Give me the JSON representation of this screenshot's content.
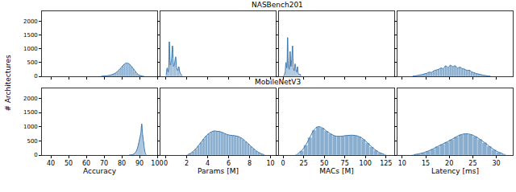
{
  "chart_data": {
    "type": "histogram",
    "ylabel": "# Architectures",
    "ylim": [
      0,
      2350
    ],
    "yticks": [
      0,
      500,
      1000,
      1500,
      2000
    ],
    "color": "#3a78b0",
    "rows": [
      {
        "title": "NASBench201",
        "panels": [
          {
            "tick_labels": "y",
            "xlim": [
              35,
              100
            ],
            "xticks": [
              40,
              50,
              60,
              70,
              80,
              90,
              100
            ],
            "bins": [
              68,
              69,
              70,
              71,
              72,
              73,
              74,
              75,
              76,
              77,
              78,
              79,
              80,
              81,
              82,
              83,
              84,
              85,
              86,
              87,
              88,
              89,
              90,
              91,
              92,
              93
            ],
            "counts": [
              5,
              8,
              12,
              20,
              30,
              45,
              60,
              85,
              120,
              170,
              230,
              300,
              380,
              440,
              480,
              470,
              430,
              360,
              280,
              190,
              110,
              55,
              25,
              10,
              3
            ]
          },
          {
            "tick_labels": false,
            "xlim": [
              -0.5,
              10.5
            ],
            "xticks": [
              0,
              2,
              4,
              6,
              8,
              10
            ],
            "bins": [
              0,
              0.1,
              0.2,
              0.3,
              0.4,
              0.5,
              0.6,
              0.7,
              0.8,
              0.9,
              1.0,
              1.1,
              1.2,
              1.3,
              1.4,
              1.5,
              1.6
            ],
            "counts": [
              50,
              300,
              150,
              1250,
              400,
              600,
              1100,
              350,
              500,
              700,
              300,
              200,
              350,
              150,
              80,
              40
            ]
          },
          {
            "tick_labels": false,
            "xlim": [
              -5,
              135
            ],
            "xticks": [
              0,
              25,
              50,
              75,
              100,
              125
            ],
            "bins": [
              0,
              1,
              2,
              3,
              4,
              5,
              6,
              7,
              8,
              9,
              10,
              11,
              12,
              13,
              14,
              15,
              16,
              17,
              18,
              19,
              20,
              21,
              22
            ],
            "counts": [
              20,
              50,
              150,
              500,
              300,
              1400,
              400,
              250,
              900,
              350,
              600,
              1100,
              300,
              200,
              450,
              250,
              150,
              350,
              100,
              60,
              80,
              20
            ]
          },
          {
            "tick_labels": false,
            "xlim": [
              9,
              33.5
            ],
            "xticks": [
              10,
              15,
              20,
              25,
              30
            ],
            "bins": [
              12,
              12.5,
              13,
              13.5,
              14,
              14.5,
              15,
              15.5,
              16,
              16.5,
              17,
              17.5,
              18,
              18.5,
              19,
              19.5,
              20,
              20.5,
              21,
              21.5,
              22,
              22.5,
              23,
              23.5,
              24,
              24.5,
              25,
              25.5,
              26,
              26.5,
              27,
              27.5,
              28,
              28.5,
              29
            ],
            "counts": [
              10,
              15,
              30,
              50,
              60,
              90,
              110,
              150,
              140,
              200,
              230,
              250,
              300,
              280,
              380,
              320,
              400,
              350,
              380,
              300,
              330,
              280,
              260,
              210,
              220,
              160,
              130,
              100,
              80,
              60,
              40,
              25,
              15,
              8
            ]
          }
        ]
      },
      {
        "title": "MobileNetV3",
        "panels": [
          {
            "tick_labels": true,
            "xlabel": "Accuracy",
            "xlim": [
              35,
              100
            ],
            "xticks": [
              40,
              50,
              60,
              70,
              80,
              90,
              100
            ],
            "bins": [
              84,
              84.5,
              85,
              85.5,
              86,
              86.5,
              87,
              87.5,
              88,
              88.5,
              89,
              89.5,
              90,
              90.5,
              91,
              91.5,
              92,
              92.5,
              93,
              93.5,
              94
            ],
            "counts": [
              3,
              5,
              8,
              12,
              20,
              35,
              55,
              90,
              140,
              220,
              330,
              470,
              620,
              760,
              1100,
              720,
              480,
              220,
              70,
              15
            ]
          },
          {
            "tick_labels": "x",
            "xlabel": "Params [M]",
            "xlim": [
              -0.5,
              10.5
            ],
            "xticks": [
              0,
              2,
              4,
              6,
              8,
              10
            ],
            "bins": [
              2,
              2.25,
              2.5,
              2.75,
              3,
              3.25,
              3.5,
              3.75,
              4,
              4.25,
              4.5,
              4.75,
              5,
              5.25,
              5.5,
              5.75,
              6,
              6.25,
              6.5,
              6.75,
              7,
              7.25,
              7.5,
              7.75,
              8,
              8.25,
              8.5,
              8.75,
              9,
              9.25,
              9.5
            ],
            "counts": [
              20,
              60,
              130,
              220,
              330,
              450,
              570,
              680,
              760,
              820,
              850,
              840,
              830,
              800,
              760,
              720,
              700,
              690,
              680,
              660,
              620,
              560,
              480,
              400,
              310,
              230,
              150,
              90,
              45,
              15
            ]
          },
          {
            "tick_labels": "x",
            "xlabel": "MACs [M]",
            "xlim": [
              -5,
              135
            ],
            "xticks": [
              0,
              25,
              50,
              75,
              100,
              125
            ],
            "bins": [
              15,
              20,
              25,
              30,
              35,
              40,
              45,
              50,
              55,
              60,
              65,
              70,
              75,
              80,
              85,
              90,
              95,
              100,
              105,
              110,
              115,
              120,
              125
            ],
            "counts": [
              40,
              150,
              350,
              620,
              880,
              1000,
              960,
              850,
              750,
              680,
              660,
              670,
              690,
              700,
              690,
              650,
              560,
              430,
              290,
              170,
              80,
              30
            ]
          },
          {
            "tick_labels": "x",
            "xlabel": "Latency [ms]",
            "xlim": [
              9,
              33.5
            ],
            "xticks": [
              10,
              15,
              20,
              25,
              30
            ],
            "bins": [
              12,
              13,
              14,
              15,
              16,
              17,
              18,
              19,
              20,
              21,
              22,
              23,
              24,
              25,
              26,
              27,
              28,
              29,
              30,
              31,
              32
            ],
            "counts": [
              15,
              40,
              80,
              140,
              210,
              300,
              380,
              460,
              550,
              640,
              720,
              750,
              730,
              660,
              560,
              440,
              310,
              190,
              100,
              40
            ]
          }
        ]
      }
    ]
  }
}
